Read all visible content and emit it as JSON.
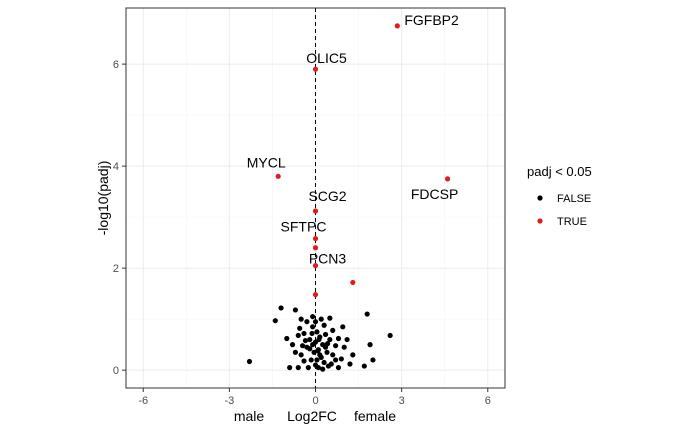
{
  "chart_data": {
    "type": "scatter",
    "title": "",
    "xlabel": "Log2FC",
    "xlabel_left": "male",
    "xlabel_right": "female",
    "ylabel": "-log10(padj)",
    "xlim": [
      -6.6,
      6.6
    ],
    "ylim": [
      -0.35,
      7.1
    ],
    "x_ticks": [
      -6,
      -3,
      0,
      3,
      6
    ],
    "x_tick_labels": [
      "-6",
      "-3",
      "0",
      "3",
      "6"
    ],
    "y_ticks": [
      0,
      2,
      4,
      6
    ],
    "y_tick_labels": [
      "0",
      "2",
      "4",
      "6"
    ],
    "grid": true,
    "vline_x": 0,
    "legend": {
      "title": "padj < 0.05",
      "position": "right",
      "entries": [
        {
          "label": "FALSE",
          "color": "#000000"
        },
        {
          "label": "TRUE",
          "color": "#e41a1c"
        }
      ]
    },
    "series": [
      {
        "name": "FALSE",
        "color": "#000000",
        "points": [
          [
            -1.2,
            1.22
          ],
          [
            -1.4,
            0.97
          ],
          [
            -0.7,
            1.18
          ],
          [
            -0.5,
            1.0
          ],
          [
            -0.3,
            0.95
          ],
          [
            -0.1,
            1.05
          ],
          [
            0.2,
            1.0
          ],
          [
            0.5,
            1.02
          ],
          [
            -2.3,
            0.17
          ],
          [
            -0.9,
            0.05
          ],
          [
            -0.8,
            0.5
          ],
          [
            -0.6,
            0.68
          ],
          [
            -0.5,
            0.3
          ],
          [
            -0.4,
            0.72
          ],
          [
            -0.3,
            0.45
          ],
          [
            -0.2,
            0.6
          ],
          [
            -0.15,
            0.2
          ],
          [
            -0.1,
            0.85
          ],
          [
            -0.05,
            0.35
          ],
          [
            0.0,
            0.55
          ],
          [
            0.0,
            0.1
          ],
          [
            0.05,
            0.75
          ],
          [
            0.1,
            0.4
          ],
          [
            0.1,
            0.05
          ],
          [
            0.15,
            0.65
          ],
          [
            0.2,
            0.25
          ],
          [
            0.25,
            0.5
          ],
          [
            0.3,
            0.15
          ],
          [
            0.35,
            0.7
          ],
          [
            0.4,
            0.35
          ],
          [
            0.45,
            0.08
          ],
          [
            0.5,
            0.6
          ],
          [
            0.6,
            0.3
          ],
          [
            0.7,
            0.48
          ],
          [
            0.8,
            0.62
          ],
          [
            0.9,
            0.22
          ],
          [
            1.0,
            0.45
          ],
          [
            1.1,
            0.6
          ],
          [
            1.3,
            0.3
          ],
          [
            0.0,
            0.95
          ],
          [
            -0.4,
            0.18
          ],
          [
            -0.7,
            0.35
          ],
          [
            0.3,
            0.88
          ],
          [
            0.8,
            0.05
          ],
          [
            1.8,
            1.1
          ],
          [
            2.6,
            0.68
          ],
          [
            1.9,
            0.5
          ],
          [
            2.0,
            0.2
          ],
          [
            1.7,
            0.08
          ],
          [
            -1.0,
            0.62
          ],
          [
            -0.25,
            0.05
          ],
          [
            0.6,
            0.78
          ],
          [
            0.15,
            0.3
          ],
          [
            -0.1,
            0.5
          ],
          [
            0.05,
            0.2
          ],
          [
            0.35,
            0.45
          ],
          [
            -0.35,
            0.58
          ],
          [
            0.55,
            0.12
          ],
          [
            0.95,
            0.85
          ],
          [
            -0.55,
            0.82
          ],
          [
            1.2,
            0.12
          ],
          [
            -0.2,
            0.42
          ],
          [
            0.25,
            0.02
          ],
          [
            -0.6,
            0.05
          ],
          [
            0.7,
            0.2
          ],
          [
            0.12,
            0.6
          ],
          [
            -0.12,
            0.72
          ],
          [
            0.42,
            0.52
          ],
          [
            -0.45,
            0.48
          ],
          [
            0.08,
            0.38
          ]
        ]
      },
      {
        "name": "TRUE",
        "color": "#e41a1c",
        "points": [
          {
            "x": 2.85,
            "y": 6.75,
            "label": "FGFBP2"
          },
          {
            "x": 0.0,
            "y": 5.9,
            "label": "OLIC5"
          },
          {
            "x": -1.3,
            "y": 3.8,
            "label": "MYCL"
          },
          {
            "x": 4.6,
            "y": 3.75,
            "label": "FDCSP"
          },
          {
            "x": 0.0,
            "y": 3.12,
            "label": "SCG2"
          },
          {
            "x": 0.0,
            "y": 2.58,
            "label": "SFTPC"
          },
          {
            "x": 0.0,
            "y": 2.4
          },
          {
            "x": 0.0,
            "y": 2.05,
            "label": "PCN3"
          },
          {
            "x": 1.3,
            "y": 1.72
          },
          {
            "x": 0.0,
            "y": 1.48
          }
        ]
      }
    ]
  }
}
